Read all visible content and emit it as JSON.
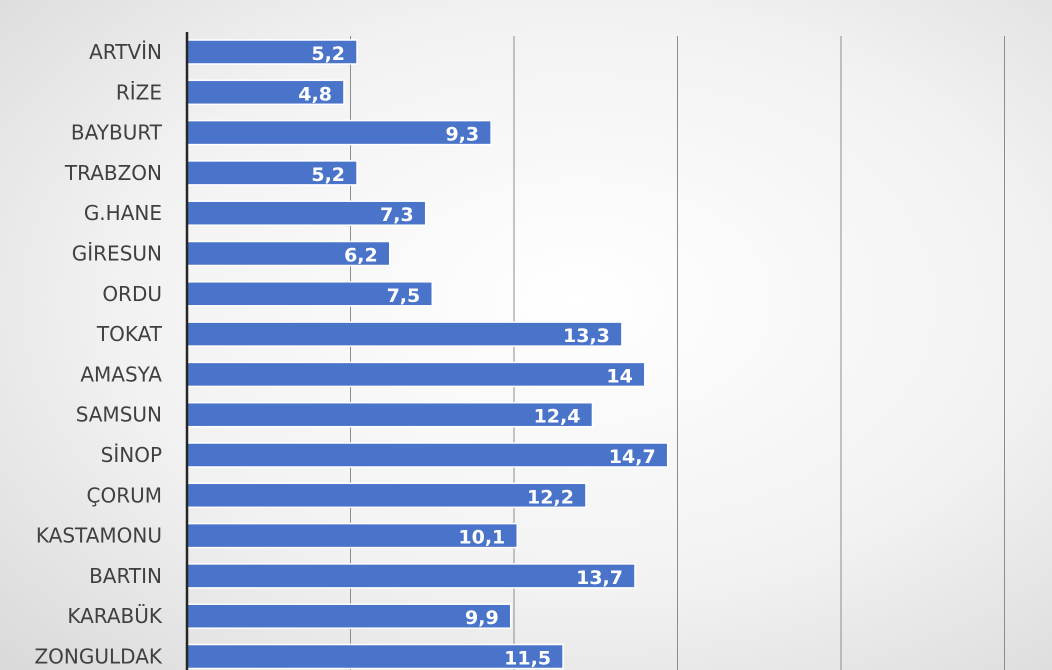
{
  "chart_data": {
    "type": "bar",
    "orientation": "horizontal",
    "title": "",
    "xlabel": "",
    "ylabel": "",
    "xlim": [
      0,
      25
    ],
    "grid": true,
    "legend": "none",
    "bar_color": "#4a74c9",
    "categories": [
      "ARTVİN",
      "RİZE",
      "BAYBURT",
      "TRABZON",
      "G.HANE",
      "GİRESUN",
      "ORDU",
      "TOKAT",
      "AMASYA",
      "SAMSUN",
      "SİNOP",
      "ÇORUM",
      "KASTAMONU",
      "BARTIN",
      "KARABÜK",
      "ZONGULDAK"
    ],
    "values": [
      5.2,
      4.8,
      9.3,
      5.2,
      7.3,
      6.2,
      7.5,
      13.3,
      14,
      12.4,
      14.7,
      12.2,
      10.1,
      13.7,
      9.9,
      11.5
    ],
    "data_labels": [
      "5,2",
      "4,8",
      "9,3",
      "5,2",
      "7,3",
      "6,2",
      "7,5",
      "13,3",
      "14",
      "12,4",
      "14,7",
      "12,2",
      "10,1",
      "13,7",
      "9,9",
      "11,5"
    ]
  }
}
